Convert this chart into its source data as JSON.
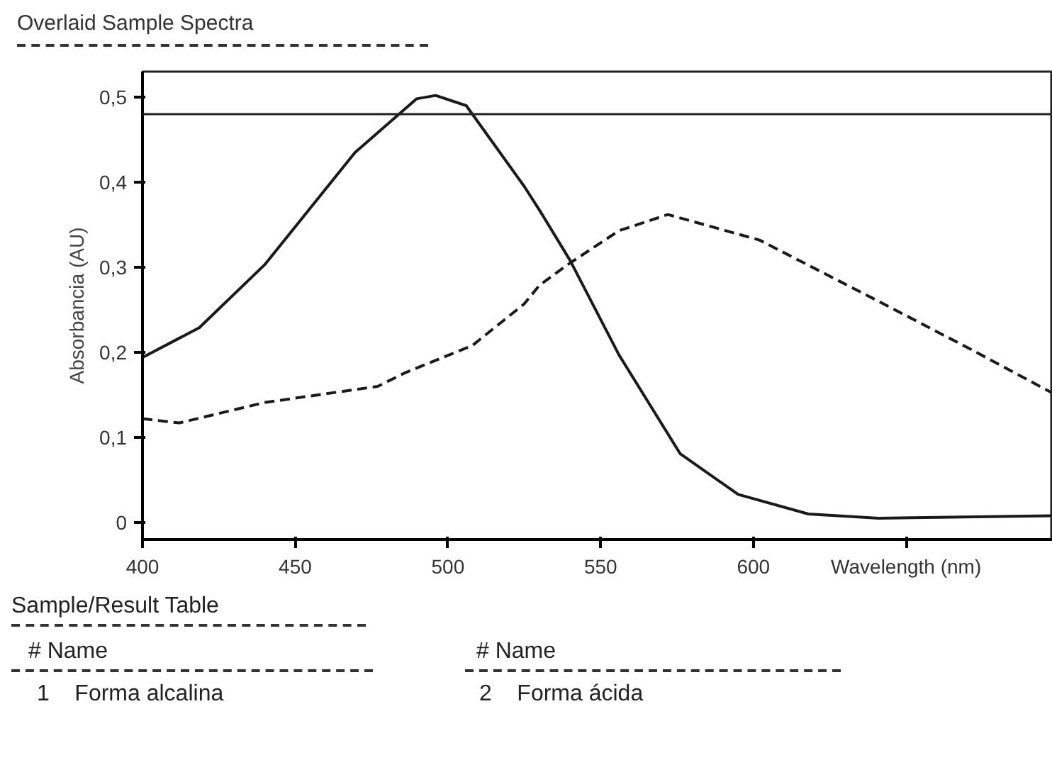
{
  "chart_data": {
    "type": "line",
    "title": "Overlaid Sample Spectra",
    "xlabel": "Wavelength (nm)",
    "ylabel": "Absorbancia (AU)",
    "xlim": [
      400,
      698
    ],
    "ylim": [
      -0.02,
      0.53
    ],
    "xticks": [
      400,
      450,
      500,
      550,
      600,
      {
        "value": 650,
        "label": null
      }
    ],
    "yticks": [
      0,
      {
        "value": 0.1,
        "label": "0,1"
      },
      {
        "value": 0.2,
        "label": "0,2"
      },
      {
        "value": 0.3,
        "label": "0,3"
      },
      {
        "value": 0.4,
        "label": "0,4"
      },
      {
        "value": 0.5,
        "label": "0,5"
      }
    ],
    "grid": false,
    "ref_lines": [
      {
        "axis": "y",
        "value": 0.48,
        "color": "#222222",
        "line_style": "solid"
      }
    ],
    "series": [
      {
        "color": "#1a1a1a",
        "line_style": "solid",
        "x": [
          400,
          418.6,
          440,
          469.6,
          489.7,
          496,
          506,
          525,
          530,
          540,
          556,
          576,
          595,
          618,
          641,
          698
        ],
        "values": [
          0.194,
          0.229,
          0.303,
          0.435,
          0.498,
          0.502,
          0.49,
          0.395,
          0.367,
          0.308,
          0.197,
          0.081,
          0.033,
          0.01,
          0.005,
          0.008
        ]
      },
      {
        "color": "#1a1a1a",
        "line_style": "dashed",
        "x": [
          400,
          412,
          440,
          477,
          486,
          508,
          525,
          530,
          540,
          556,
          572,
          602,
          641,
          672,
          698
        ],
        "values": [
          0.122,
          0.117,
          0.141,
          0.16,
          0.176,
          0.208,
          0.257,
          0.279,
          0.305,
          0.343,
          0.362,
          0.332,
          0.26,
          0.202,
          0.152
        ]
      }
    ],
    "annotations": [
      "Sample/Result Table",
      "# Name",
      "1    Forma alcalina",
      "# Name",
      "2    Forma ácida"
    ]
  }
}
